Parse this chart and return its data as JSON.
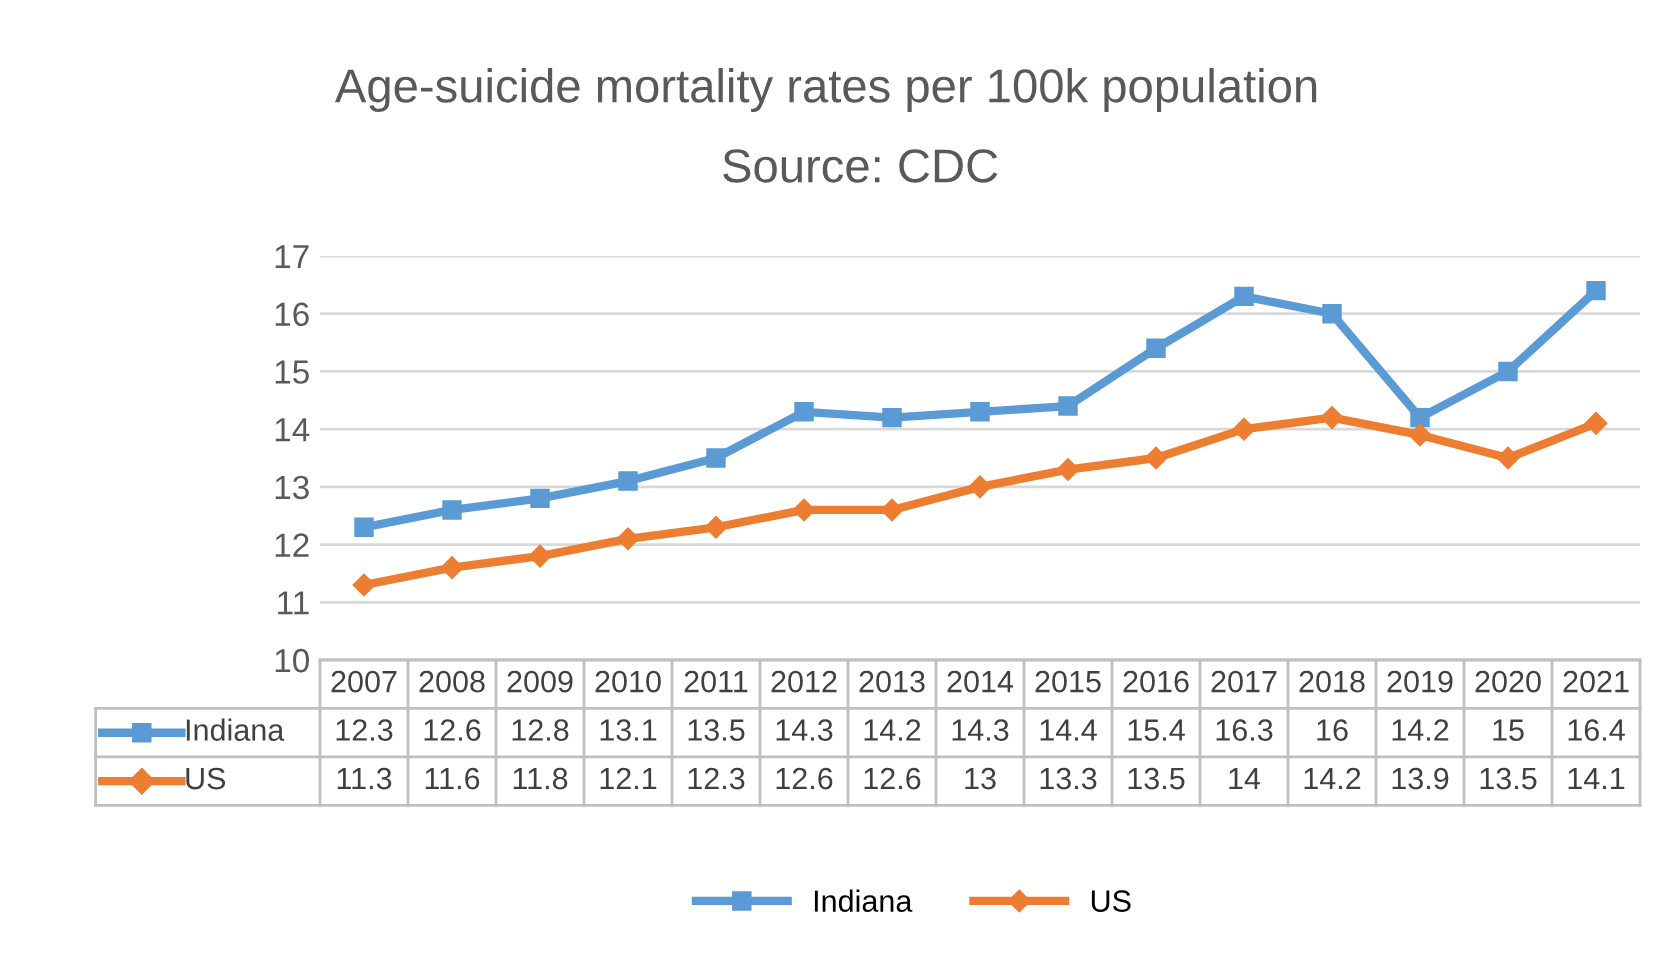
{
  "chart_data": {
    "type": "line",
    "title": "Age-suicide mortality rates per 100k population",
    "subtitle": "Source: CDC",
    "categories": [
      "2007",
      "2008",
      "2009",
      "2010",
      "2011",
      "2012",
      "2013",
      "2014",
      "2015",
      "2016",
      "2017",
      "2018",
      "2019",
      "2020",
      "2021"
    ],
    "series": [
      {
        "name": "Indiana",
        "color": "#5b9bd5",
        "marker": "square",
        "values": [
          12.3,
          12.6,
          12.8,
          13.1,
          13.5,
          14.3,
          14.2,
          14.3,
          14.4,
          15.4,
          16.3,
          16,
          14.2,
          15,
          16.4
        ]
      },
      {
        "name": "US",
        "color": "#ed7d31",
        "marker": "diamond",
        "values": [
          11.3,
          11.6,
          11.8,
          12.1,
          12.3,
          12.6,
          12.6,
          13,
          13.3,
          13.5,
          14,
          14.2,
          13.9,
          13.5,
          14.1
        ]
      }
    ],
    "ylim": [
      10,
      17
    ],
    "yticks": [
      10,
      11,
      12,
      13,
      14,
      15,
      16,
      17
    ],
    "grid": "y",
    "legend": "bottom",
    "data_labels": true
  }
}
